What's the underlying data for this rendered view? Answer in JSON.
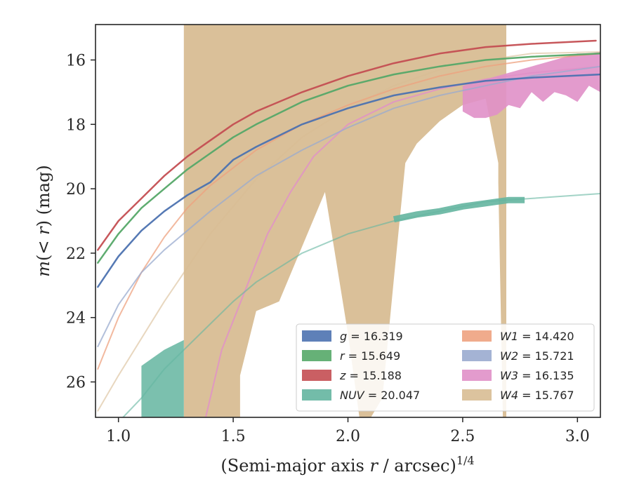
{
  "chart_data": {
    "type": "line",
    "xlabel_main": "(Semi-major axis ",
    "xlabel_var": "r",
    "xlabel_tail": " / arcsec)",
    "xlabel_sup": "1/4",
    "ylabel_main": "m",
    "ylabel_mid": "(< ",
    "ylabel_var": "r",
    "ylabel_tail": ") (mag)",
    "xlim": [
      0.9,
      3.1
    ],
    "ylim": [
      27.1,
      14.9
    ],
    "y_inverted": true,
    "xticks": [
      "1.0",
      "1.5",
      "2.0",
      "2.5",
      "3.0"
    ],
    "yticks": [
      "16",
      "18",
      "20",
      "22",
      "24",
      "26"
    ],
    "legend_position": "lower-right",
    "legend_entries": [
      {
        "band": "g",
        "value": "= 16.319",
        "color": "#4c72b0"
      },
      {
        "band": "r",
        "value": "= 15.649",
        "color": "#55a868"
      },
      {
        "band": "z",
        "value": "= 15.188",
        "color": "#c44e52"
      },
      {
        "band": "NUV",
        "value": "= 20.047",
        "color": "#64b5a0"
      },
      {
        "band": "W1",
        "value": "= 14.420",
        "color": "#eea27f"
      },
      {
        "band": "W2",
        "value": "= 15.721",
        "color": "#9aabcf"
      },
      {
        "band": "W3",
        "value": "= 16.135",
        "color": "#e090c8"
      },
      {
        "band": "W4",
        "value": "= 15.767",
        "color": "#d8bd94"
      }
    ],
    "series": [
      {
        "band": "W4",
        "color": "#d8bd94",
        "band_x": [
          1.285,
          1.285,
          1.53,
          1.53,
          1.6,
          1.7,
          1.8,
          1.9,
          2.0,
          2.05,
          2.1,
          2.15,
          2.2,
          2.25,
          2.3,
          2.4,
          2.5,
          2.6,
          2.655,
          2.655,
          2.675,
          2.675,
          2.69,
          2.69
        ],
        "band_upper": [
          14.9,
          14.9,
          14.9,
          14.9,
          14.9,
          14.9,
          14.9,
          14.9,
          14.9,
          14.9,
          14.9,
          14.9,
          14.9,
          14.9,
          14.9,
          14.9,
          14.9,
          14.9,
          14.9,
          14.9,
          14.9,
          14.9,
          14.9,
          14.9
        ],
        "band_lower": [
          27.1,
          27.1,
          27.1,
          25.8,
          23.8,
          23.5,
          21.8,
          20.1,
          24.5,
          27.1,
          27.1,
          26.5,
          22.8,
          19.2,
          18.6,
          17.9,
          17.4,
          17.2,
          19.2,
          19.8,
          27.1,
          27.1,
          27.1,
          27.1
        ],
        "line_x": [
          0.91,
          1.0,
          1.2,
          1.4,
          1.6,
          1.8,
          2.0,
          2.2,
          2.4,
          2.6,
          2.8,
          3.1
        ],
        "line_y": [
          26.9,
          25.8,
          23.5,
          21.4,
          19.7,
          18.4,
          17.5,
          16.8,
          16.3,
          16.0,
          15.8,
          15.75
        ]
      },
      {
        "band": "W3",
        "color": "#e090c8",
        "band_x": [
          2.5,
          2.55,
          2.6,
          2.65,
          2.7,
          2.75,
          2.8,
          2.85,
          2.9,
          2.95,
          3.0,
          3.05,
          3.1
        ],
        "band_upper": [
          16.8,
          16.7,
          16.6,
          16.5,
          16.4,
          16.3,
          16.2,
          16.1,
          16.0,
          15.9,
          15.8,
          15.8,
          15.75
        ],
        "band_lower": [
          17.6,
          17.8,
          17.8,
          17.7,
          17.4,
          17.5,
          17.0,
          17.3,
          17.0,
          17.1,
          17.3,
          16.8,
          17.0
        ],
        "line_x": [
          1.38,
          1.45,
          1.55,
          1.65,
          1.75,
          1.85,
          2.0,
          2.2,
          2.4,
          2.6,
          2.8,
          3.1
        ],
        "line_y": [
          27.1,
          25.0,
          23.2,
          21.4,
          20.1,
          19.0,
          18.0,
          17.3,
          16.9,
          16.6,
          16.4,
          16.2
        ]
      },
      {
        "band": "W1",
        "color": "#eea27f",
        "line_x": [
          0.91,
          1.0,
          1.1,
          1.2,
          1.3,
          1.4,
          1.6,
          1.8,
          2.0,
          2.2,
          2.4,
          2.6,
          2.8,
          3.1
        ],
        "line_y": [
          25.6,
          24.0,
          22.6,
          21.5,
          20.6,
          19.9,
          18.8,
          18.0,
          17.4,
          16.9,
          16.5,
          16.2,
          16.0,
          15.8
        ]
      },
      {
        "band": "W2",
        "color": "#9aabcf",
        "line_x": [
          0.91,
          1.0,
          1.1,
          1.2,
          1.3,
          1.4,
          1.6,
          1.8,
          2.0,
          2.2,
          2.4,
          2.6,
          2.8,
          3.1
        ],
        "line_y": [
          24.9,
          23.6,
          22.6,
          21.9,
          21.3,
          20.7,
          19.6,
          18.8,
          18.1,
          17.5,
          17.1,
          16.8,
          16.5,
          16.2
        ]
      },
      {
        "band": "NUV",
        "color": "#64b5a0",
        "band_x": [
          1.1,
          1.2,
          1.285,
          1.285,
          1.2,
          1.1
        ],
        "band_poly_y": [
          25.5,
          25.0,
          24.7,
          27.1,
          27.1,
          27.1
        ],
        "thick_x": [
          2.2,
          2.3,
          2.4,
          2.5,
          2.6,
          2.7,
          2.77
        ],
        "thick_y": [
          20.95,
          20.8,
          20.7,
          20.55,
          20.45,
          20.35,
          20.35
        ],
        "line_x": [
          1.02,
          1.1,
          1.2,
          1.3,
          1.4,
          1.5,
          1.6,
          1.8,
          2.0,
          2.2,
          2.4,
          2.6,
          2.8,
          3.1
        ],
        "line_y": [
          27.1,
          26.5,
          25.6,
          24.9,
          24.2,
          23.5,
          22.9,
          22.0,
          21.4,
          21.0,
          20.7,
          20.4,
          20.3,
          20.15
        ]
      },
      {
        "band": "g",
        "color": "#4c72b0",
        "line_x": [
          0.91,
          1.0,
          1.1,
          1.2,
          1.3,
          1.4,
          1.5,
          1.6,
          1.8,
          2.0,
          2.2,
          2.4,
          2.6,
          2.8,
          3.1
        ],
        "line_y": [
          23.05,
          22.1,
          21.3,
          20.7,
          20.2,
          19.8,
          19.1,
          18.7,
          18.0,
          17.5,
          17.1,
          16.85,
          16.65,
          16.55,
          16.45
        ]
      },
      {
        "band": "r",
        "color": "#55a868",
        "line_x": [
          0.91,
          1.0,
          1.1,
          1.2,
          1.3,
          1.4,
          1.5,
          1.6,
          1.8,
          2.0,
          2.2,
          2.4,
          2.6,
          2.8,
          3.1
        ],
        "line_y": [
          22.3,
          21.4,
          20.6,
          20.0,
          19.4,
          18.9,
          18.4,
          18.0,
          17.3,
          16.8,
          16.45,
          16.2,
          16.0,
          15.9,
          15.8
        ]
      },
      {
        "band": "z",
        "color": "#c44e52",
        "line_x": [
          0.91,
          1.0,
          1.1,
          1.2,
          1.3,
          1.4,
          1.5,
          1.6,
          1.8,
          2.0,
          2.2,
          2.4,
          2.6,
          2.8,
          3.08
        ],
        "line_y": [
          21.9,
          21.0,
          20.3,
          19.6,
          19.0,
          18.5,
          18.0,
          17.6,
          17.0,
          16.5,
          16.1,
          15.8,
          15.6,
          15.5,
          15.4
        ]
      }
    ]
  }
}
